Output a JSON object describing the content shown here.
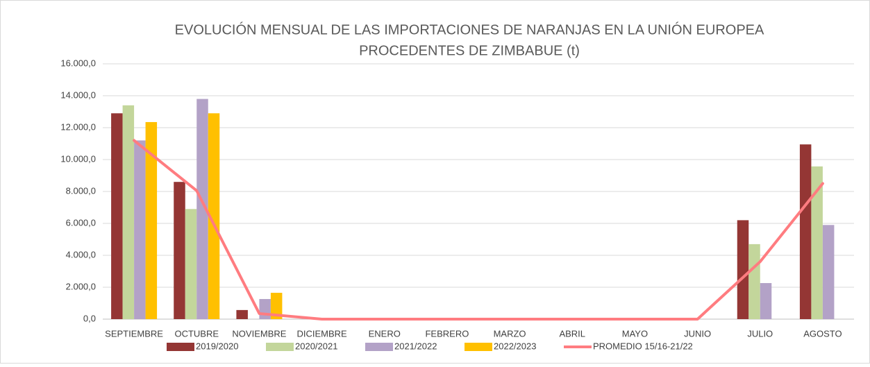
{
  "chart_data": {
    "type": "bar",
    "title": [
      "EVOLUCIÓN MENSUAL DE LAS IMPORTACIONES DE NARANJAS EN LA UNIÓN EUROPEA",
      "PROCEDENTES DE ZIMBABUE (t)"
    ],
    "categories": [
      "SEPTIEMBRE",
      "OCTUBRE",
      "NOVIEMBRE",
      "DICIEMBRE",
      "ENERO",
      "FEBRERO",
      "MARZO",
      "ABRIL",
      "MAYO",
      "JUNIO",
      "JULIO",
      "AGOSTO"
    ],
    "series": [
      {
        "name": "2019/2020",
        "color": "#943634",
        "values": [
          12900,
          8600,
          570,
          0,
          0,
          0,
          0,
          0,
          0,
          0,
          6200,
          10950
        ]
      },
      {
        "name": "2020/2021",
        "color": "#c3d69b",
        "values": [
          13400,
          6900,
          0,
          0,
          0,
          0,
          0,
          0,
          0,
          0,
          4700,
          9570
        ]
      },
      {
        "name": "2021/2022",
        "color": "#b3a2c7",
        "values": [
          11200,
          13800,
          1260,
          0,
          0,
          0,
          0,
          0,
          0,
          0,
          2260,
          5900
        ]
      },
      {
        "name": "2022/2023",
        "color": "#ffc000",
        "values": [
          12350,
          12900,
          1650,
          0,
          0,
          0,
          0,
          0,
          0,
          0,
          null,
          null
        ]
      },
      {
        "name": "PROMEDIO 15/16-21/22",
        "color": "#ff7c80",
        "type": "line",
        "values": [
          11200,
          8050,
          350,
          0,
          0,
          0,
          0,
          0,
          0,
          0,
          3600,
          8500
        ]
      }
    ],
    "ylim": [
      0,
      16000
    ],
    "yticks": [
      {
        "value": 0,
        "label": "0,0"
      },
      {
        "value": 2000,
        "label": "2.000,0"
      },
      {
        "value": 4000,
        "label": "4.000,0"
      },
      {
        "value": 6000,
        "label": "6.000,0"
      },
      {
        "value": 8000,
        "label": "8.000,0"
      },
      {
        "value": 10000,
        "label": "10.000,0"
      },
      {
        "value": 12000,
        "label": "12.000,0"
      },
      {
        "value": 14000,
        "label": "14.000,0"
      },
      {
        "value": 16000,
        "label": "16.000,0"
      }
    ],
    "grid": true,
    "legend": "bottom"
  }
}
